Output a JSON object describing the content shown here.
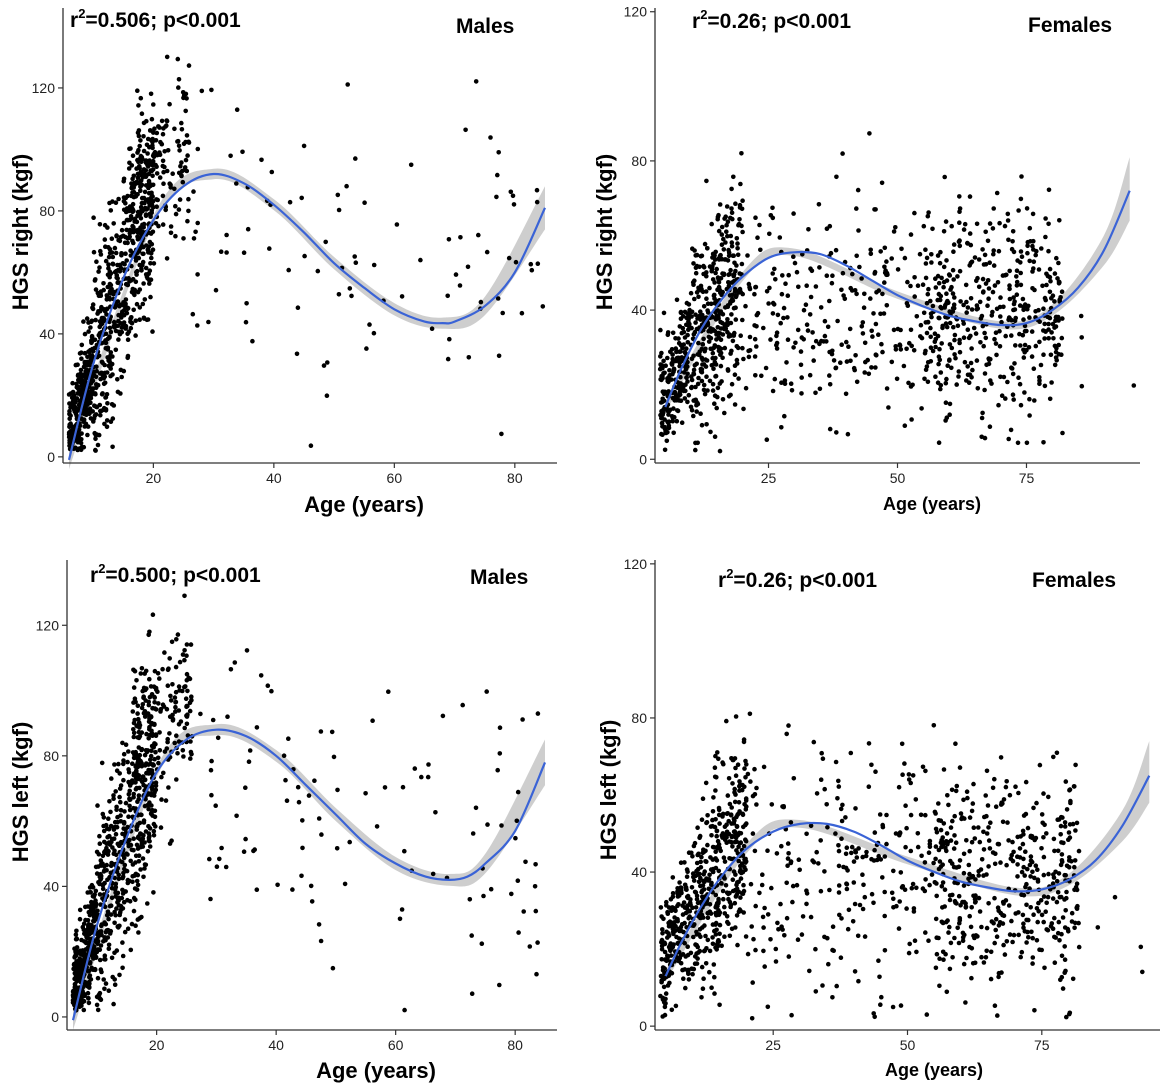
{
  "chart_data": [
    {
      "type": "scatter",
      "panel": "top-left",
      "sex_label": "Males",
      "stat_r": "r",
      "stat_sup": "2",
      "stat_rest": "=0.506; p<0.001",
      "xlabel": "Age (years)",
      "ylabel": "HGS right (kgf)",
      "xlim": [
        5,
        87
      ],
      "ylim": [
        -2,
        146
      ],
      "xticks": [
        20,
        40,
        60,
        80
      ],
      "yticks": [
        0,
        40,
        80,
        120
      ],
      "fit_curve": {
        "x": [
          6,
          10,
          15,
          20,
          25,
          30,
          35,
          40,
          45,
          50,
          55,
          60,
          65,
          68,
          70,
          75,
          80,
          85
        ],
        "y": [
          -1,
          30,
          58,
          77,
          88,
          92,
          89,
          82,
          73,
          63,
          55,
          48,
          44,
          43.5,
          44,
          49,
          60,
          81
        ]
      },
      "band": {
        "x": [
          6,
          20,
          30,
          40,
          50,
          60,
          68,
          75,
          85
        ],
        "lower": [
          -4,
          75.5,
          90.3,
          80.2,
          61,
          46,
          41.7,
          46,
          74
        ],
        "upper": [
          2,
          78.5,
          93.7,
          83.8,
          65,
          50,
          45.3,
          52,
          88
        ]
      },
      "clusters": [
        {
          "n": 320,
          "xr": [
            6,
            10
          ],
          "ym": [
            5,
            30
          ],
          "sd": 8
        },
        {
          "n": 520,
          "xr": [
            10,
            20
          ],
          "ym": [
            30,
            85
          ],
          "sd": 16
        },
        {
          "n": 170,
          "xr": [
            16,
            26
          ],
          "ym": [
            88,
            100
          ],
          "sd": 14
        },
        {
          "n": 30,
          "xr": [
            26,
            40
          ],
          "ym": [
            80,
            80
          ],
          "sd": 20
        },
        {
          "n": 70,
          "xr": [
            40,
            85
          ],
          "ym": [
            60,
            60
          ],
          "sd": 22
        }
      ],
      "seed": 11,
      "axis_title_size": 22
    },
    {
      "type": "scatter",
      "panel": "top-right",
      "sex_label": "Females",
      "stat_r": "r",
      "stat_sup": "2",
      "stat_rest": "=0.26; p<0.001",
      "xlabel": "Age (years)",
      "ylabel": "HGS right (kgf)",
      "xlim": [
        3,
        97
      ],
      "ylim": [
        -1,
        121
      ],
      "xticks": [
        25,
        50,
        75
      ],
      "yticks": [
        0,
        40,
        80,
        120
      ],
      "fit_curve": {
        "x": [
          5,
          8,
          12,
          16,
          20,
          25,
          30,
          35,
          40,
          45,
          50,
          55,
          60,
          65,
          70,
          75,
          80,
          85,
          90,
          95
        ],
        "y": [
          14,
          24,
          35,
          43,
          49,
          54,
          55.5,
          55,
          52,
          48,
          44,
          41,
          38.5,
          37,
          36,
          36.5,
          40,
          46,
          56,
          72
        ]
      },
      "band": {
        "x": [
          5,
          20,
          30,
          50,
          70,
          80,
          90,
          95
        ],
        "lower": [
          12.5,
          47.8,
          54.5,
          43,
          35,
          38.5,
          52,
          64
        ],
        "upper": [
          15.5,
          50.2,
          56.5,
          45,
          37,
          41.5,
          60,
          81
        ]
      },
      "clusters": [
        {
          "n": 200,
          "xr": [
            4,
            10
          ],
          "ym": [
            15,
            30
          ],
          "sd": 8
        },
        {
          "n": 380,
          "xr": [
            10,
            20
          ],
          "ym": [
            30,
            50
          ],
          "sd": 13
        },
        {
          "n": 260,
          "xr": [
            20,
            55
          ],
          "ym": [
            40,
            40
          ],
          "sd": 16
        },
        {
          "n": 450,
          "xr": [
            55,
            82
          ],
          "ym": [
            40,
            40
          ],
          "sd": 14
        },
        {
          "n": 4,
          "xr": [
            85,
            96
          ],
          "ym": [
            25,
            25
          ],
          "sd": 8
        }
      ],
      "seed": 23,
      "axis_title_size": 18
    },
    {
      "type": "scatter",
      "panel": "bottom-left",
      "sex_label": "Males",
      "stat_r": "r",
      "stat_sup": "2",
      "stat_rest": "=0.500; p<0.001",
      "xlabel": "Age (years)",
      "ylabel": "HGS left (kgf)",
      "xlim": [
        5,
        87
      ],
      "ylim": [
        -4,
        140
      ],
      "xticks": [
        20,
        40,
        60,
        80
      ],
      "yticks": [
        0,
        40,
        80,
        120
      ],
      "fit_curve": {
        "x": [
          6,
          10,
          15,
          20,
          25,
          30,
          35,
          40,
          45,
          50,
          55,
          60,
          65,
          69,
          72,
          75,
          80,
          85
        ],
        "y": [
          -1,
          28,
          55,
          75,
          85,
          88,
          86,
          80,
          71,
          62,
          53,
          47,
          43,
          42,
          43,
          47,
          57,
          78
        ]
      },
      "band": {
        "x": [
          6,
          20,
          30,
          40,
          50,
          60,
          69,
          75,
          85
        ],
        "lower": [
          -4,
          73.5,
          86.3,
          78.2,
          60,
          45,
          40.2,
          44,
          71
        ],
        "upper": [
          2,
          76.5,
          89.7,
          81.8,
          64,
          49,
          43.8,
          50,
          85
        ]
      },
      "clusters": [
        {
          "n": 320,
          "xr": [
            6,
            10
          ],
          "ym": [
            5,
            30
          ],
          "sd": 8
        },
        {
          "n": 520,
          "xr": [
            10,
            20
          ],
          "ym": [
            30,
            80
          ],
          "sd": 16
        },
        {
          "n": 170,
          "xr": [
            16,
            26
          ],
          "ym": [
            85,
            95
          ],
          "sd": 14
        },
        {
          "n": 30,
          "xr": [
            26,
            40
          ],
          "ym": [
            75,
            75
          ],
          "sd": 20
        },
        {
          "n": 80,
          "xr": [
            40,
            85
          ],
          "ym": [
            55,
            55
          ],
          "sd": 22
        }
      ],
      "seed": 37,
      "axis_title_size": 22
    },
    {
      "type": "scatter",
      "panel": "bottom-right",
      "sex_label": "Females",
      "stat_r": "r",
      "stat_sup": "2",
      "stat_rest": "=0.26; p<0.001",
      "xlabel": "Age (years)",
      "ylabel": "HGS left (kgf)",
      "xlim": [
        3,
        97
      ],
      "ylim": [
        -1,
        121
      ],
      "xticks": [
        25,
        50,
        75
      ],
      "yticks": [
        0,
        40,
        80,
        120
      ],
      "fit_curve": {
        "x": [
          5,
          8,
          12,
          16,
          20,
          25,
          30,
          35,
          40,
          45,
          50,
          55,
          60,
          65,
          70,
          75,
          80,
          85,
          90,
          95
        ],
        "y": [
          13,
          22,
          32,
          40,
          46,
          50.5,
          52.5,
          52.5,
          50.5,
          47,
          43,
          40,
          37.5,
          36,
          35,
          35.5,
          38,
          43,
          52,
          65
        ]
      },
      "band": {
        "x": [
          5,
          20,
          30,
          50,
          70,
          80,
          90,
          95
        ],
        "lower": [
          11.5,
          44.8,
          51.5,
          42,
          34,
          36.5,
          48,
          58
        ],
        "upper": [
          14.5,
          47.2,
          53.5,
          44,
          36,
          39.5,
          56,
          74
        ]
      },
      "clusters": [
        {
          "n": 200,
          "xr": [
            4,
            10
          ],
          "ym": [
            15,
            30
          ],
          "sd": 8
        },
        {
          "n": 380,
          "xr": [
            10,
            20
          ],
          "ym": [
            30,
            50
          ],
          "sd": 13
        },
        {
          "n": 250,
          "xr": [
            20,
            55
          ],
          "ym": [
            40,
            40
          ],
          "sd": 16
        },
        {
          "n": 450,
          "xr": [
            55,
            82
          ],
          "ym": [
            38,
            38
          ],
          "sd": 14
        },
        {
          "n": 4,
          "xr": [
            85,
            96
          ],
          "ym": [
            20,
            20
          ],
          "sd": 8
        }
      ],
      "seed": 51,
      "axis_title_size": 18
    }
  ],
  "colors": {
    "fit_line": "#3a63d6",
    "band": "#bdbdbd",
    "points": "#000000",
    "axis": "#333333"
  }
}
